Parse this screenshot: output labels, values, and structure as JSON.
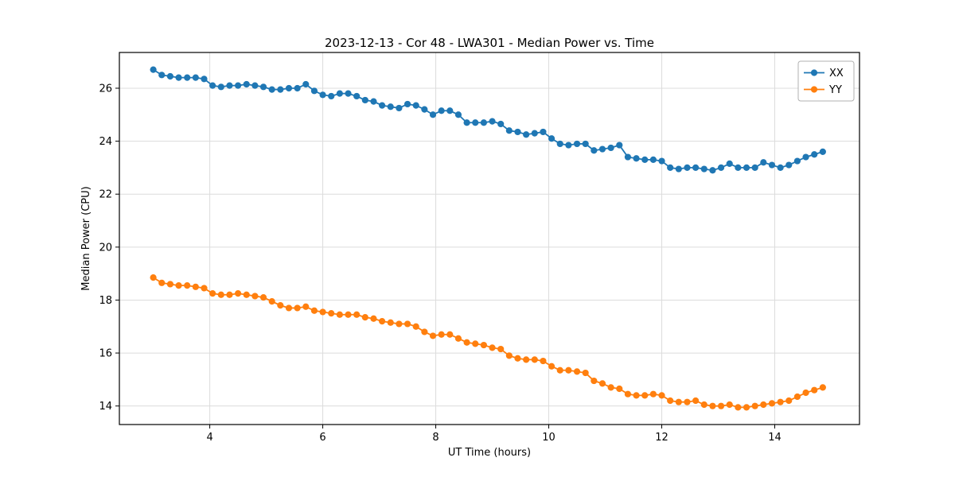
{
  "chart_data": {
    "type": "line",
    "title": "2023-12-13 - Cor 48 - LWA301 - Median Power vs. Time",
    "xlabel": "UT Time (hours)",
    "ylabel": "Median Power (CPU)",
    "xlim": [
      2.4,
      15.5
    ],
    "ylim": [
      13.3,
      27.35
    ],
    "xticks": [
      4,
      6,
      8,
      10,
      12,
      14
    ],
    "yticks": [
      14,
      16,
      18,
      20,
      22,
      24,
      26
    ],
    "grid": true,
    "grid_color": "#dcdcdc",
    "frame_color": "#000000",
    "legend_position": "upper right",
    "x": [
      3.0,
      3.15,
      3.3,
      3.45,
      3.6,
      3.75,
      3.9,
      4.05,
      4.2,
      4.35,
      4.5,
      4.65,
      4.8,
      4.95,
      5.1,
      5.25,
      5.4,
      5.55,
      5.7,
      5.85,
      6.0,
      6.15,
      6.3,
      6.45,
      6.6,
      6.75,
      6.9,
      7.05,
      7.2,
      7.35,
      7.5,
      7.65,
      7.8,
      7.95,
      8.1,
      8.25,
      8.4,
      8.55,
      8.7,
      8.85,
      9.0,
      9.15,
      9.3,
      9.45,
      9.6,
      9.75,
      9.9,
      10.05,
      10.2,
      10.35,
      10.5,
      10.65,
      10.8,
      10.95,
      11.1,
      11.25,
      11.4,
      11.55,
      11.7,
      11.85,
      12.0,
      12.15,
      12.3,
      12.45,
      12.6,
      12.75,
      12.9,
      13.05,
      13.2,
      13.35,
      13.5,
      13.65,
      13.8,
      13.95,
      14.1,
      14.25,
      14.4,
      14.55,
      14.7,
      14.85
    ],
    "series": [
      {
        "name": "XX",
        "color": "#1f77b4",
        "values": [
          26.7,
          26.5,
          26.45,
          26.4,
          26.4,
          26.4,
          26.35,
          26.1,
          26.05,
          26.1,
          26.1,
          26.15,
          26.1,
          26.05,
          25.95,
          25.95,
          26.0,
          26.0,
          26.15,
          25.9,
          25.75,
          25.7,
          25.8,
          25.8,
          25.7,
          25.55,
          25.5,
          25.35,
          25.3,
          25.25,
          25.4,
          25.35,
          25.2,
          25.0,
          25.15,
          25.15,
          25.0,
          24.7,
          24.7,
          24.7,
          24.75,
          24.65,
          24.4,
          24.35,
          24.25,
          24.3,
          24.35,
          24.1,
          23.9,
          23.85,
          23.9,
          23.9,
          23.65,
          23.7,
          23.75,
          23.85,
          23.4,
          23.35,
          23.3,
          23.3,
          23.25,
          23.0,
          22.95,
          23.0,
          23.0,
          22.95,
          22.9,
          23.0,
          23.15,
          23.0,
          23.0,
          23.0,
          23.2,
          23.1,
          23.0,
          23.1,
          23.25,
          23.4,
          23.5,
          23.6
        ]
      },
      {
        "name": "YY",
        "color": "#ff7f0e",
        "values": [
          18.85,
          18.65,
          18.6,
          18.55,
          18.55,
          18.5,
          18.45,
          18.25,
          18.2,
          18.2,
          18.25,
          18.2,
          18.15,
          18.1,
          17.95,
          17.8,
          17.7,
          17.7,
          17.75,
          17.6,
          17.55,
          17.5,
          17.45,
          17.45,
          17.45,
          17.35,
          17.3,
          17.2,
          17.15,
          17.1,
          17.1,
          17.0,
          16.8,
          16.65,
          16.7,
          16.7,
          16.55,
          16.4,
          16.35,
          16.3,
          16.2,
          16.15,
          15.9,
          15.8,
          15.75,
          15.75,
          15.7,
          15.5,
          15.35,
          15.35,
          15.3,
          15.25,
          14.95,
          14.85,
          14.7,
          14.65,
          14.45,
          14.4,
          14.4,
          14.45,
          14.4,
          14.2,
          14.15,
          14.15,
          14.2,
          14.05,
          14.0,
          14.0,
          14.05,
          13.95,
          13.95,
          14.0,
          14.05,
          14.1,
          14.15,
          14.2,
          14.35,
          14.5,
          14.6,
          14.7
        ]
      }
    ]
  }
}
